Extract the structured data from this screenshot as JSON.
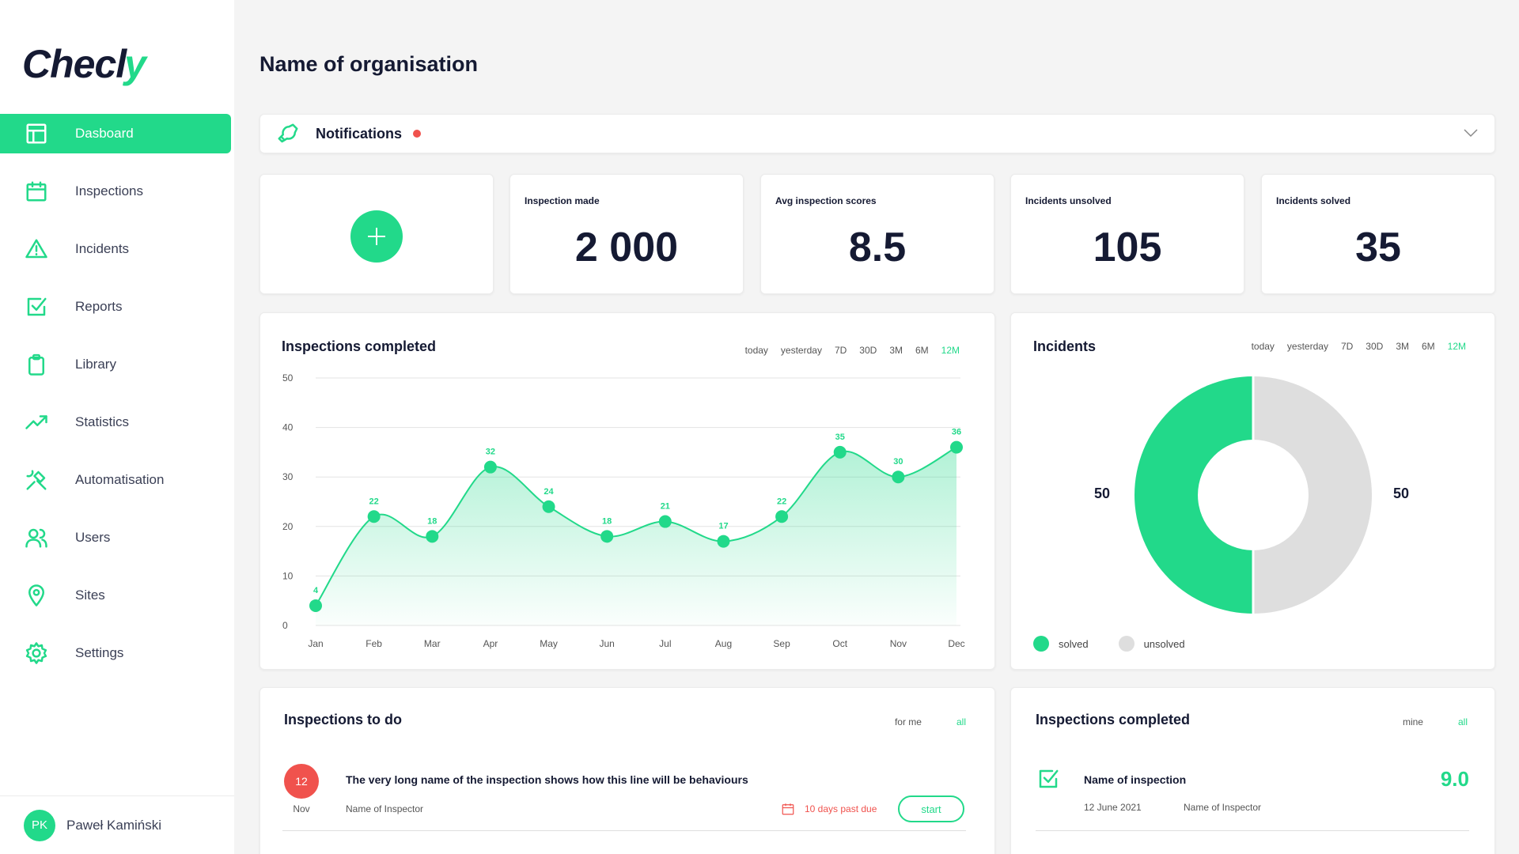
{
  "brand": {
    "logo_main": "Checl",
    "logo_accent": "y"
  },
  "sidebar": {
    "items": [
      {
        "label": "Dasboard",
        "icon": "layout-icon",
        "active": true
      },
      {
        "label": "Inspections",
        "icon": "calendar-icon"
      },
      {
        "label": "Incidents",
        "icon": "warning-icon"
      },
      {
        "label": "Reports",
        "icon": "checkbox-icon"
      },
      {
        "label": "Library",
        "icon": "clipboard-icon"
      },
      {
        "label": "Statistics",
        "icon": "trend-icon"
      },
      {
        "label": "Automatisation",
        "icon": "tools-icon"
      },
      {
        "label": "Users",
        "icon": "users-icon"
      },
      {
        "label": "Sites",
        "icon": "map-pin-icon"
      },
      {
        "label": "Settings",
        "icon": "gear-icon"
      }
    ],
    "user": {
      "initials": "PK",
      "name": "Paweł Kamiński"
    }
  },
  "header": {
    "title": "Name of organisation"
  },
  "notifications": {
    "label": "Notifications"
  },
  "stats": [
    {
      "label": "Inspection made",
      "value": "2 000"
    },
    {
      "label": "Avg inspection scores",
      "value": "8.5"
    },
    {
      "label": "Incidents unsolved",
      "value": "105"
    },
    {
      "label": "Incidents solved",
      "value": "35"
    }
  ],
  "filters": [
    "today",
    "yesterday",
    "7D",
    "30D",
    "3M",
    "6M",
    "12M"
  ],
  "active_filter": "12M",
  "inspections_chart": {
    "title": "Inspections completed"
  },
  "incidents_chart": {
    "title": "Incidents",
    "solved_value": "50",
    "unsolved_value": "50",
    "legend": {
      "solved": "solved",
      "unsolved": "unsolved"
    }
  },
  "chart_data": [
    {
      "type": "area",
      "title": "Inspections completed",
      "categories": [
        "Jan",
        "Feb",
        "Mar",
        "Apr",
        "May",
        "Jun",
        "Jul",
        "Aug",
        "Sep",
        "Oct",
        "Nov",
        "Dec"
      ],
      "values": [
        4,
        22,
        18,
        32,
        24,
        18,
        21,
        17,
        22,
        35,
        30,
        36
      ],
      "yticks": [
        0,
        10,
        20,
        30,
        40,
        50
      ],
      "ylim": [
        0,
        50
      ],
      "grid": true,
      "color": "#22d98a"
    },
    {
      "type": "pie",
      "title": "Incidents",
      "labels": [
        "solved",
        "unsolved"
      ],
      "values": [
        50,
        50
      ],
      "colors": [
        "#22d98a",
        "#dedede"
      ]
    }
  ],
  "todo": {
    "title": "Inspections to do",
    "tabs": [
      "for me",
      "all"
    ],
    "active_tab": "all",
    "item": {
      "day": "12",
      "month": "Nov",
      "name": "The very long name of the inspection shows how this line will be behaviours",
      "inspector": "Name of Inspector",
      "due": "10 days past due",
      "action": "start"
    }
  },
  "completed": {
    "title": "Inspections completed",
    "tabs": [
      "mine",
      "all"
    ],
    "active_tab": "all",
    "item": {
      "name": "Name of inspection",
      "date": "12 June 2021",
      "inspector": "Name of Inspector",
      "score": "9.0"
    }
  },
  "colors": {
    "accent": "#22d98a",
    "danger": "#f0524d",
    "muted": "#dedede"
  }
}
